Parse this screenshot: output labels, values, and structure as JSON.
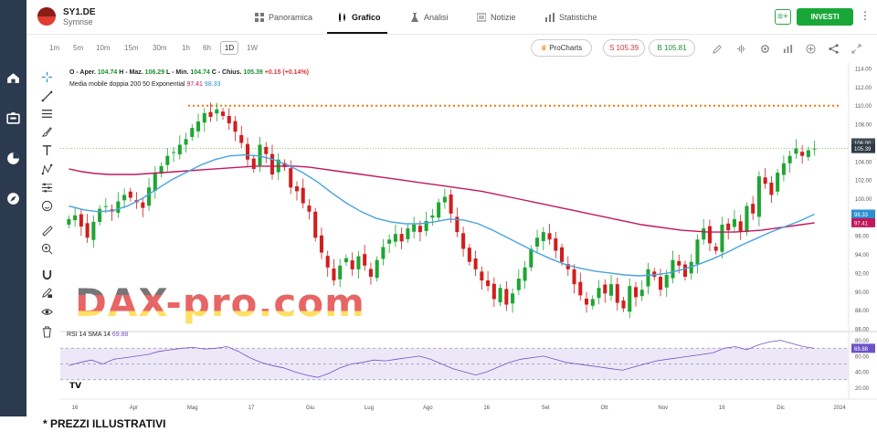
{
  "app": {
    "symbol": "SY1.DE",
    "company": "Symrise",
    "nav_tabs": [
      {
        "label": "Panoramica",
        "icon": "overview-icon",
        "active": false
      },
      {
        "label": "Grafico",
        "icon": "candles-icon",
        "active": true
      },
      {
        "label": "Analisi",
        "icon": "flask-icon",
        "active": false
      },
      {
        "label": "Notizie",
        "icon": "news-icon",
        "active": false
      },
      {
        "label": "Statistiche",
        "icon": "stats-icon",
        "active": false
      }
    ],
    "invest_label": "INVESTI",
    "watchlist_icon": "add-to-list-icon",
    "more_icon": "kebab-icon",
    "brand_color": "#19a838"
  },
  "timeframes": [
    {
      "label": "1m",
      "active": false
    },
    {
      "label": "5m",
      "active": false
    },
    {
      "label": "10m",
      "active": false
    },
    {
      "label": "15m",
      "active": false
    },
    {
      "label": "30m",
      "active": false
    },
    {
      "label": "1h",
      "active": false
    },
    {
      "label": "6h",
      "active": false
    },
    {
      "label": "1D",
      "active": true
    },
    {
      "label": "1W",
      "active": false
    }
  ],
  "prochart_label": "ProCharts",
  "sell": {
    "label": "S",
    "price": "105.39"
  },
  "buy": {
    "label": "B",
    "price": "105.81"
  },
  "right_tools": [
    "pencil-icon",
    "waveform-icon",
    "settings-icon",
    "bars-icon",
    "plus-icon",
    "share-icon",
    "expand-icon"
  ],
  "draw_tools": [
    "crosshair-icon",
    "trendline-icon",
    "fib-icon",
    "brush-icon",
    "text-icon",
    "pattern-icon",
    "measure-icon",
    "emoji-icon",
    "ruler-icon",
    "zoom-in-icon",
    "magnet-icon",
    "lock-draw-icon",
    "eye-icon",
    "trash-icon"
  ],
  "left_nav": [
    "home-icon",
    "portfolio-icon",
    "pie-chart-icon",
    "discover-icon"
  ],
  "legend": {
    "ohlc_prefix": "O",
    "open_label": "Aper.",
    "open": "104.74",
    "high_label": "H - Maz.",
    "high": "106.29",
    "low_label": "L - Min.",
    "low": "104.74",
    "close_label": "C - Chius.",
    "close": "105.39",
    "change": "+0.15 (+0.14%)",
    "ma_title": "Media mobile doppia 200 50 Exponential",
    "ma1": "97.41",
    "ma2": "98.33",
    "rsi_title": "RSI 14 SMA 14",
    "rsi_value": "69.88"
  },
  "watermark": "DAX-pro.com",
  "disclaimer": "* PREZZI ILLUSTRATIVI",
  "chart_data": {
    "type": "candlestick",
    "price_axis": {
      "min": 86,
      "max": 114,
      "ticks": [
        "114.00",
        "112.00",
        "110.00",
        "108.00",
        "106.00",
        "104.00",
        "102.00",
        "100.00",
        "98.00",
        "96.00",
        "94.00",
        "92.00",
        "90.00",
        "88.00",
        "86.00"
      ]
    },
    "rsi_axis": {
      "ticks": [
        "80.00",
        "60.00",
        "40.00",
        "20.00"
      ]
    },
    "x_ticks": [
      "16",
      "Apr",
      "Mag",
      "17",
      "Giu",
      "Lug",
      "Ago",
      "16",
      "Set",
      "Ott",
      "Nov",
      "16",
      "Dic",
      "2024"
    ],
    "price_labels": [
      {
        "value": "106.00",
        "color": "#333333"
      },
      {
        "value": "105.39",
        "color": "#333333"
      },
      {
        "value": "98.33",
        "color": "#2a8fd0"
      },
      {
        "value": "97.41",
        "color": "#c2185b"
      }
    ],
    "rsi_label": "69.88",
    "resistance_level": 110.0,
    "current_price": 105.39,
    "closes": [
      97.8,
      98.2,
      97.0,
      95.8,
      97.5,
      98.9,
      99.2,
      98.6,
      99.7,
      100.4,
      100.1,
      99.6,
      99.0,
      101.2,
      102.8,
      103.5,
      104.6,
      105.0,
      105.8,
      106.4,
      107.6,
      108.3,
      109.2,
      108.8,
      109.6,
      108.9,
      108.1,
      107.2,
      106.0,
      104.2,
      103.2,
      105.8,
      104.8,
      102.6,
      104.2,
      103.4,
      101.2,
      100.8,
      99.5,
      98.6,
      95.8,
      94.2,
      92.6,
      91.2,
      92.8,
      93.6,
      92.4,
      93.8,
      92.8,
      91.6,
      93.4,
      94.8,
      95.6,
      96.2,
      95.4,
      96.8,
      97.2,
      96.4,
      97.6,
      98.2,
      99.6,
      100.2,
      98.4,
      96.4,
      94.6,
      93.2,
      92.4,
      91.2,
      90.6,
      89.2,
      90.4,
      88.6,
      89.8,
      91.4,
      92.6,
      94.6,
      95.8,
      96.4,
      95.6,
      94.4,
      93.2,
      92.4,
      90.8,
      89.6,
      88.6,
      89.2,
      90.4,
      89.8,
      90.8,
      88.8,
      88.2,
      90.6,
      89.4,
      90.2,
      92.4,
      91.6,
      90.2,
      91.8,
      93.4,
      92.8,
      91.6,
      93.2,
      95.6,
      96.8,
      95.2,
      94.4,
      97.2,
      96.6,
      97.8,
      96.4,
      99.2,
      98.4,
      102.4,
      101.6,
      100.4,
      102.8,
      103.8,
      104.6,
      105.4,
      104.6,
      105.2,
      105.39
    ],
    "ma200": [
      103.2,
      102.9,
      102.7,
      102.6,
      102.6,
      102.6,
      102.7,
      102.8,
      102.9,
      103.0,
      103.1,
      103.2,
      103.3,
      103.4,
      103.5,
      103.5,
      103.5,
      103.5,
      103.4,
      103.2,
      103.0,
      102.8,
      102.6,
      102.4,
      102.2,
      102.0,
      101.8,
      101.6,
      101.4,
      101.2,
      101.0,
      100.8,
      100.5,
      100.2,
      99.9,
      99.6,
      99.3,
      99.0,
      98.7,
      98.4,
      98.1,
      97.8,
      97.5,
      97.2,
      97.0,
      96.8,
      96.6,
      96.5,
      96.4,
      96.4,
      96.4,
      96.5,
      96.6,
      96.8,
      97.0,
      97.2,
      97.4
    ],
    "ma50": [
      99.2,
      98.8,
      98.6,
      98.7,
      99.2,
      100.0,
      101.0,
      102.0,
      102.8,
      103.6,
      104.2,
      104.6,
      104.7,
      104.6,
      104.2,
      103.6,
      102.8,
      101.8,
      100.6,
      99.5,
      98.6,
      97.9,
      97.5,
      97.3,
      97.3,
      97.5,
      97.8,
      97.7,
      97.3,
      96.6,
      95.8,
      95.0,
      94.2,
      93.5,
      92.9,
      92.5,
      92.2,
      92.0,
      91.8,
      91.7,
      91.8,
      92.0,
      92.4,
      92.9,
      93.5,
      94.2,
      95.0,
      95.7,
      96.4,
      97.0,
      97.6,
      98.33
    ],
    "rsi": [
      48,
      52,
      55,
      50,
      56,
      58,
      60,
      62,
      66,
      68,
      70,
      71,
      69,
      70,
      72,
      66,
      58,
      52,
      48,
      45,
      40,
      36,
      33,
      38,
      45,
      50,
      52,
      55,
      54,
      56,
      58,
      60,
      56,
      50,
      44,
      40,
      36,
      40,
      46,
      52,
      56,
      58,
      60,
      56,
      52,
      50,
      48,
      46,
      44,
      42,
      46,
      50,
      54,
      56,
      58,
      60,
      62,
      64,
      70,
      72,
      68,
      74,
      78,
      80,
      76,
      72,
      69.88
    ],
    "colors": {
      "up": "#1fa533",
      "down": "#d11e1e",
      "ma200": "#c2185b",
      "ma50": "#4aa3df",
      "resistance": "#f07800",
      "rsi": "#6f52c7"
    }
  }
}
